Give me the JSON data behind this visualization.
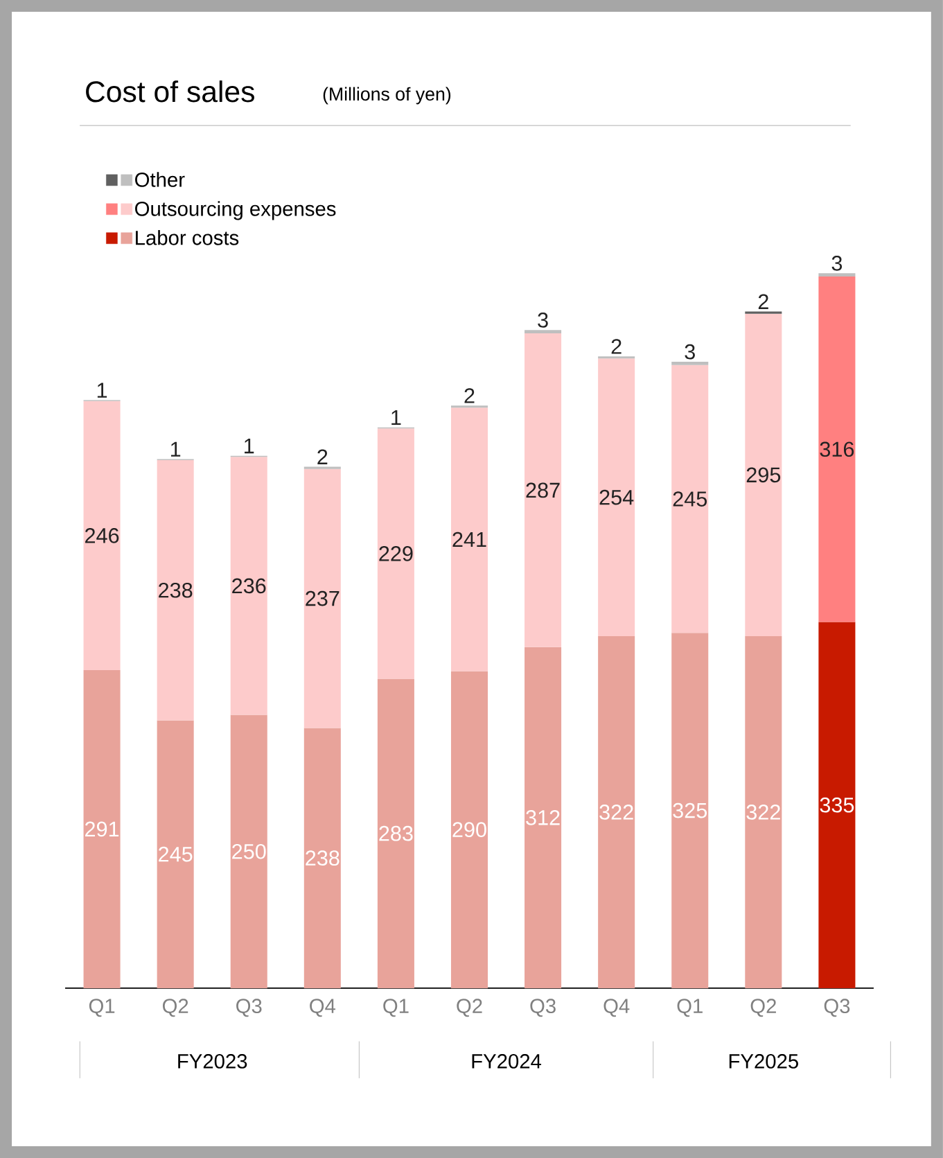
{
  "chart_data": {
    "type": "bar",
    "stacked": true,
    "data_labels": true,
    "legend": "top left",
    "title": "Cost of sales",
    "subtitle": "(Millions of yen)",
    "categories": [
      "Q1",
      "Q2",
      "Q3",
      "Q4",
      "Q1",
      "Q2",
      "Q3",
      "Q4",
      "Q1",
      "Q2",
      "Q3"
    ],
    "annotations": [
      "FY2023",
      "FY2024",
      "FY2025"
    ],
    "series": [
      {
        "name": "Labor costs",
        "color": "#e8a39a",
        "colors": [
          "#e8a39a",
          "#e8a39a",
          "#e8a39a",
          "#e8a39a",
          "#e8a39a",
          "#e8a39a",
          "#e8a39a",
          "#e8a39a",
          "#e8a39a",
          "#e8a39a",
          "#c81a00"
        ],
        "values": [
          291,
          245,
          250,
          238,
          283,
          290,
          312,
          322,
          325,
          322,
          335
        ]
      },
      {
        "name": "Outsourcing expenses",
        "color": "#fdcbcb",
        "colors": [
          "#fdcbcb",
          "#fdcbcb",
          "#fdcbcb",
          "#fdcbcb",
          "#fdcbcb",
          "#fdcbcb",
          "#fdcbcb",
          "#fdcbcb",
          "#fdcbcb",
          "#fdcbcb",
          "#ff8080"
        ],
        "values": [
          246,
          238,
          236,
          237,
          229,
          241,
          287,
          254,
          245,
          295,
          316
        ]
      },
      {
        "name": "Other",
        "color": "#bfbfbf",
        "colors": [
          "#bfbfbf",
          "#bfbfbf",
          "#bfbfbf",
          "#bfbfbf",
          "#bfbfbf",
          "#bfbfbf",
          "#bfbfbf",
          "#bfbfbf",
          "#bfbfbf",
          "#606060",
          "#bfbfbf"
        ],
        "values": [
          1,
          1,
          1,
          2,
          1,
          2,
          3,
          2,
          3,
          2,
          3
        ]
      }
    ]
  }
}
